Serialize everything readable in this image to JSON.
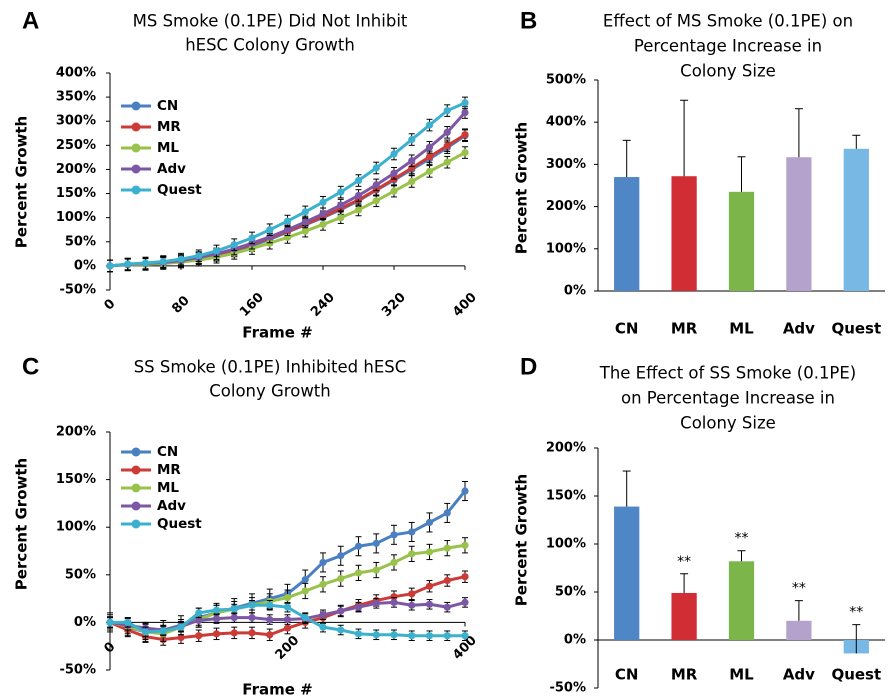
{
  "chart_data": [
    {
      "panel_label": "A",
      "type": "line",
      "title": [
        "MS Smoke (0.1PE) Did Not Inhibit",
        "hESC Colony Growth"
      ],
      "xlabel": "Frame #",
      "ylabel": "Percent Growth",
      "xlim": [
        0,
        400
      ],
      "ylim": [
        -50,
        400
      ],
      "x_ticks": [
        "0",
        "80",
        "160",
        "240",
        "320",
        "400"
      ],
      "y_ticks": [
        "-50%",
        "0%",
        "50%",
        "100%",
        "150%",
        "200%",
        "250%",
        "300%",
        "350%",
        "400%"
      ],
      "grid": false,
      "legend": "top-left",
      "x": [
        0,
        20,
        40,
        60,
        80,
        100,
        120,
        140,
        160,
        180,
        200,
        220,
        240,
        260,
        280,
        300,
        320,
        340,
        360,
        380,
        400
      ],
      "series": [
        {
          "name": "CN",
          "color": "#4a7fc1",
          "values": [
            0,
            3,
            4,
            7,
            10,
            15,
            22,
            31,
            42,
            55,
            70,
            85,
            100,
            117,
            135,
            157,
            178,
            200,
            222,
            245,
            270
          ],
          "error": [
            12,
            12,
            12,
            12,
            12,
            12,
            12,
            12,
            12,
            12,
            12,
            12,
            12,
            12,
            12,
            12,
            12,
            12,
            12,
            12,
            12
          ]
        },
        {
          "name": "MR",
          "color": "#cc3b36",
          "values": [
            0,
            3,
            5,
            8,
            11,
            17,
            24,
            33,
            45,
            58,
            72,
            87,
            102,
            119,
            137,
            158,
            180,
            203,
            226,
            249,
            272
          ],
          "error": [
            12,
            12,
            12,
            12,
            12,
            12,
            12,
            12,
            12,
            12,
            12,
            12,
            12,
            12,
            12,
            12,
            12,
            12,
            12,
            12,
            12
          ]
        },
        {
          "name": "ML",
          "color": "#98c24a",
          "values": [
            0,
            2,
            3,
            5,
            8,
            12,
            18,
            26,
            36,
            47,
            59,
            72,
            86,
            100,
            116,
            135,
            155,
            175,
            196,
            215,
            235
          ],
          "error": [
            12,
            12,
            12,
            12,
            12,
            12,
            12,
            12,
            12,
            12,
            12,
            12,
            12,
            12,
            12,
            12,
            12,
            12,
            12,
            12,
            12
          ]
        },
        {
          "name": "Adv",
          "color": "#7b57a6",
          "values": [
            0,
            3,
            5,
            7,
            11,
            17,
            25,
            35,
            47,
            60,
            75,
            91,
            108,
            126,
            146,
            168,
            192,
            218,
            246,
            277,
            318
          ],
          "error": [
            12,
            12,
            12,
            12,
            12,
            12,
            12,
            12,
            12,
            12,
            12,
            12,
            12,
            12,
            12,
            12,
            12,
            12,
            12,
            12,
            12
          ]
        },
        {
          "name": "Quest",
          "color": "#3bb1cf",
          "values": [
            0,
            4,
            6,
            9,
            14,
            21,
            31,
            44,
            58,
            75,
            93,
            112,
            132,
            153,
            177,
            203,
            232,
            262,
            292,
            322,
            338
          ],
          "error": [
            12,
            12,
            12,
            12,
            12,
            12,
            12,
            12,
            12,
            12,
            12,
            12,
            12,
            12,
            12,
            12,
            12,
            12,
            12,
            12,
            12
          ]
        }
      ]
    },
    {
      "panel_label": "B",
      "type": "bar",
      "title": [
        "Effect of MS Smoke (0.1PE) on",
        "Percentage Increase in",
        "Colony Size"
      ],
      "xlabel": "",
      "ylabel": "Percent Growth",
      "ylim": [
        0,
        500
      ],
      "y_ticks": [
        "0%",
        "100%",
        "200%",
        "300%",
        "400%",
        "500%"
      ],
      "grid": false,
      "categories": [
        "CN",
        "MR",
        "ML",
        "Adv",
        "Quest"
      ],
      "colors": [
        "#4f86c6",
        "#d12d34",
        "#7cb64a",
        "#b4a2cc",
        "#77b8e4"
      ],
      "values": [
        270,
        272,
        235,
        317,
        337
      ],
      "error": [
        87,
        180,
        83,
        115,
        32
      ],
      "annotations": [
        "",
        "",
        "",
        "",
        ""
      ]
    },
    {
      "panel_label": "C",
      "type": "line",
      "title": [
        "SS Smoke (0.1PE) Inhibited hESC",
        "Colony Growth"
      ],
      "xlabel": "Frame #",
      "ylabel": "Percent Growth",
      "xlim": [
        0,
        400
      ],
      "ylim": [
        -50,
        200
      ],
      "x_ticks": [
        "0",
        "200",
        "400"
      ],
      "y_ticks": [
        "-50%",
        "0%",
        "50%",
        "100%",
        "150%",
        "200%"
      ],
      "grid": false,
      "legend": "top-left",
      "x": [
        0,
        20,
        40,
        60,
        80,
        100,
        120,
        140,
        160,
        180,
        200,
        220,
        240,
        260,
        280,
        300,
        320,
        340,
        360,
        380,
        400
      ],
      "series": [
        {
          "name": "CN",
          "color": "#4a7fc1",
          "values": [
            0,
            -5,
            -10,
            -8,
            -3,
            5,
            10,
            15,
            20,
            25,
            30,
            45,
            63,
            70,
            80,
            83,
            92,
            95,
            105,
            115,
            138
          ],
          "error": [
            10,
            10,
            10,
            10,
            10,
            10,
            10,
            10,
            10,
            10,
            10,
            10,
            10,
            10,
            10,
            10,
            10,
            10,
            10,
            10,
            10
          ]
        },
        {
          "name": "MR",
          "color": "#cc3b36",
          "values": [
            0,
            -8,
            -15,
            -18,
            -16,
            -14,
            -12,
            -11,
            -11,
            -13,
            -6,
            0,
            5,
            12,
            18,
            23,
            27,
            30,
            38,
            44,
            48
          ],
          "error": [
            6,
            6,
            6,
            6,
            6,
            6,
            6,
            6,
            6,
            6,
            6,
            6,
            6,
            6,
            6,
            6,
            6,
            6,
            6,
            6,
            6
          ]
        },
        {
          "name": "ML",
          "color": "#98c24a",
          "values": [
            0,
            -4,
            -10,
            -12,
            -5,
            3,
            10,
            14,
            18,
            22,
            26,
            33,
            40,
            46,
            52,
            55,
            63,
            72,
            74,
            78,
            81
          ],
          "error": [
            8,
            8,
            8,
            8,
            8,
            8,
            8,
            8,
            8,
            8,
            8,
            8,
            8,
            8,
            8,
            8,
            8,
            8,
            8,
            8,
            8
          ]
        },
        {
          "name": "Adv",
          "color": "#7b57a6",
          "values": [
            0,
            -3,
            -6,
            -8,
            -4,
            2,
            4,
            5,
            5,
            3,
            3,
            4,
            8,
            12,
            16,
            20,
            21,
            18,
            19,
            16,
            21
          ],
          "error": [
            5,
            5,
            5,
            5,
            5,
            5,
            5,
            5,
            5,
            5,
            5,
            5,
            5,
            5,
            5,
            5,
            5,
            5,
            5,
            5,
            5
          ]
        },
        {
          "name": "Quest",
          "color": "#3bb1cf",
          "values": [
            0,
            0,
            -10,
            -9,
            -5,
            10,
            13,
            14,
            18,
            18,
            16,
            5,
            -5,
            -8,
            -12,
            -13,
            -13,
            -14,
            -14,
            -14,
            -14
          ],
          "error": [
            5,
            5,
            5,
            5,
            5,
            5,
            5,
            5,
            5,
            5,
            5,
            5,
            5,
            5,
            5,
            5,
            5,
            5,
            5,
            5,
            5
          ]
        }
      ]
    },
    {
      "panel_label": "D",
      "type": "bar",
      "title": [
        "The Effect of SS Smoke (0.1PE)",
        "on Percentage Increase in",
        "Colony Size"
      ],
      "xlabel": "",
      "ylabel": "Percent Growth",
      "ylim": [
        -50,
        200
      ],
      "y_ticks": [
        "-50%",
        "0%",
        "50%",
        "100%",
        "150%",
        "200%"
      ],
      "grid": false,
      "categories": [
        "CN",
        "MR",
        "ML",
        "Adv",
        "Quest"
      ],
      "colors": [
        "#4f86c6",
        "#d12d34",
        "#7cb64a",
        "#b4a2cc",
        "#77b8e4"
      ],
      "values": [
        139,
        49,
        82,
        20,
        -14
      ],
      "error": [
        37,
        20,
        11,
        21,
        30
      ],
      "annotations": [
        "",
        "**",
        "**",
        "**",
        "**"
      ]
    }
  ]
}
